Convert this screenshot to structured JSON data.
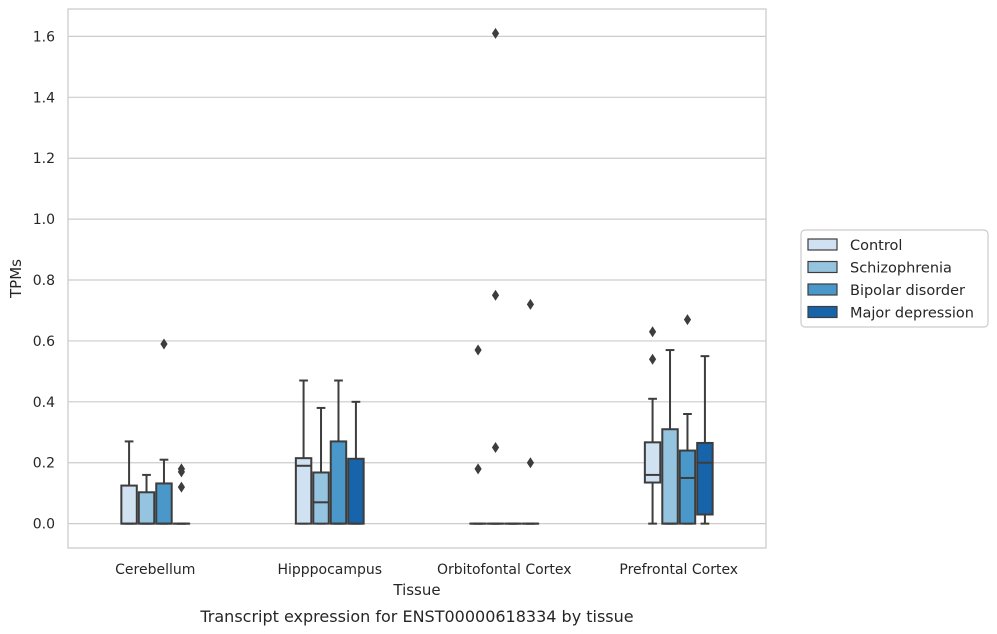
{
  "caption": "Transcript expression for ENST00000618334 by tissue",
  "chart_data": {
    "type": "box",
    "xlabel": "Tissue",
    "ylabel": "TPMs",
    "ylim": [
      -0.08,
      1.69
    ],
    "yticks": [
      "0.0",
      "0.2",
      "0.4",
      "0.6",
      "0.8",
      "1.0",
      "1.2",
      "1.4",
      "1.6"
    ],
    "categories": [
      "Cerebellum",
      "Hipppocampus",
      "Orbitofontal Cortex",
      "Prefrontal Cortex"
    ],
    "grid": true,
    "legend_position": "right",
    "series": [
      {
        "name": "Control",
        "color": "#d0e1f2",
        "boxes": [
          {
            "whislo": 0,
            "q1": 0,
            "med": 0,
            "q3": 0.125,
            "whishi": 0.27,
            "fliers": []
          },
          {
            "whislo": 0,
            "q1": 0,
            "med": 0.19,
            "q3": 0.215,
            "whishi": 0.47,
            "fliers": []
          },
          {
            "whislo": 0,
            "q1": 0,
            "med": 0,
            "q3": 0,
            "whishi": 0,
            "fliers": [
              0.57,
              0.18
            ]
          },
          {
            "whislo": 0,
            "q1": 0.135,
            "med": 0.16,
            "q3": 0.267,
            "whishi": 0.41,
            "fliers": [
              0.63,
              0.54
            ]
          }
        ]
      },
      {
        "name": "Schizophrenia",
        "color": "#94c4df",
        "boxes": [
          {
            "whislo": 0,
            "q1": 0,
            "med": 0,
            "q3": 0.103,
            "whishi": 0.16,
            "fliers": []
          },
          {
            "whislo": 0,
            "q1": 0,
            "med": 0.07,
            "q3": 0.168,
            "whishi": 0.38,
            "fliers": []
          },
          {
            "whislo": 0,
            "q1": 0,
            "med": 0,
            "q3": 0,
            "whishi": 0,
            "fliers": [
              1.61,
              0.75,
              0.25
            ]
          },
          {
            "whislo": 0,
            "q1": 0,
            "med": 0,
            "q3": 0.31,
            "whishi": 0.57,
            "fliers": []
          }
        ]
      },
      {
        "name": "Bipolar disorder",
        "color": "#4a98c9",
        "boxes": [
          {
            "whislo": 0,
            "q1": 0,
            "med": 0,
            "q3": 0.132,
            "whishi": 0.21,
            "fliers": [
              0.59
            ]
          },
          {
            "whislo": 0,
            "q1": 0,
            "med": 0,
            "q3": 0.27,
            "whishi": 0.47,
            "fliers": []
          },
          {
            "whislo": 0,
            "q1": 0,
            "med": 0,
            "q3": 0,
            "whishi": 0,
            "fliers": []
          },
          {
            "whislo": 0,
            "q1": 0,
            "med": 0.15,
            "q3": 0.24,
            "whishi": 0.36,
            "fliers": [
              0.67
            ]
          }
        ]
      },
      {
        "name": "Major depression",
        "color": "#1764ab",
        "boxes": [
          {
            "whislo": 0,
            "q1": 0,
            "med": 0,
            "q3": 0,
            "whishi": 0,
            "fliers": [
              0.18,
              0.17,
              0.12
            ]
          },
          {
            "whislo": 0,
            "q1": 0,
            "med": 0,
            "q3": 0.213,
            "whishi": 0.4,
            "fliers": []
          },
          {
            "whislo": 0,
            "q1": 0,
            "med": 0,
            "q3": 0,
            "whishi": 0,
            "fliers": [
              0.72,
              0.2
            ]
          },
          {
            "whislo": 0,
            "q1": 0.03,
            "med": 0.2,
            "q3": 0.265,
            "whishi": 0.55,
            "fliers": []
          }
        ]
      }
    ]
  }
}
